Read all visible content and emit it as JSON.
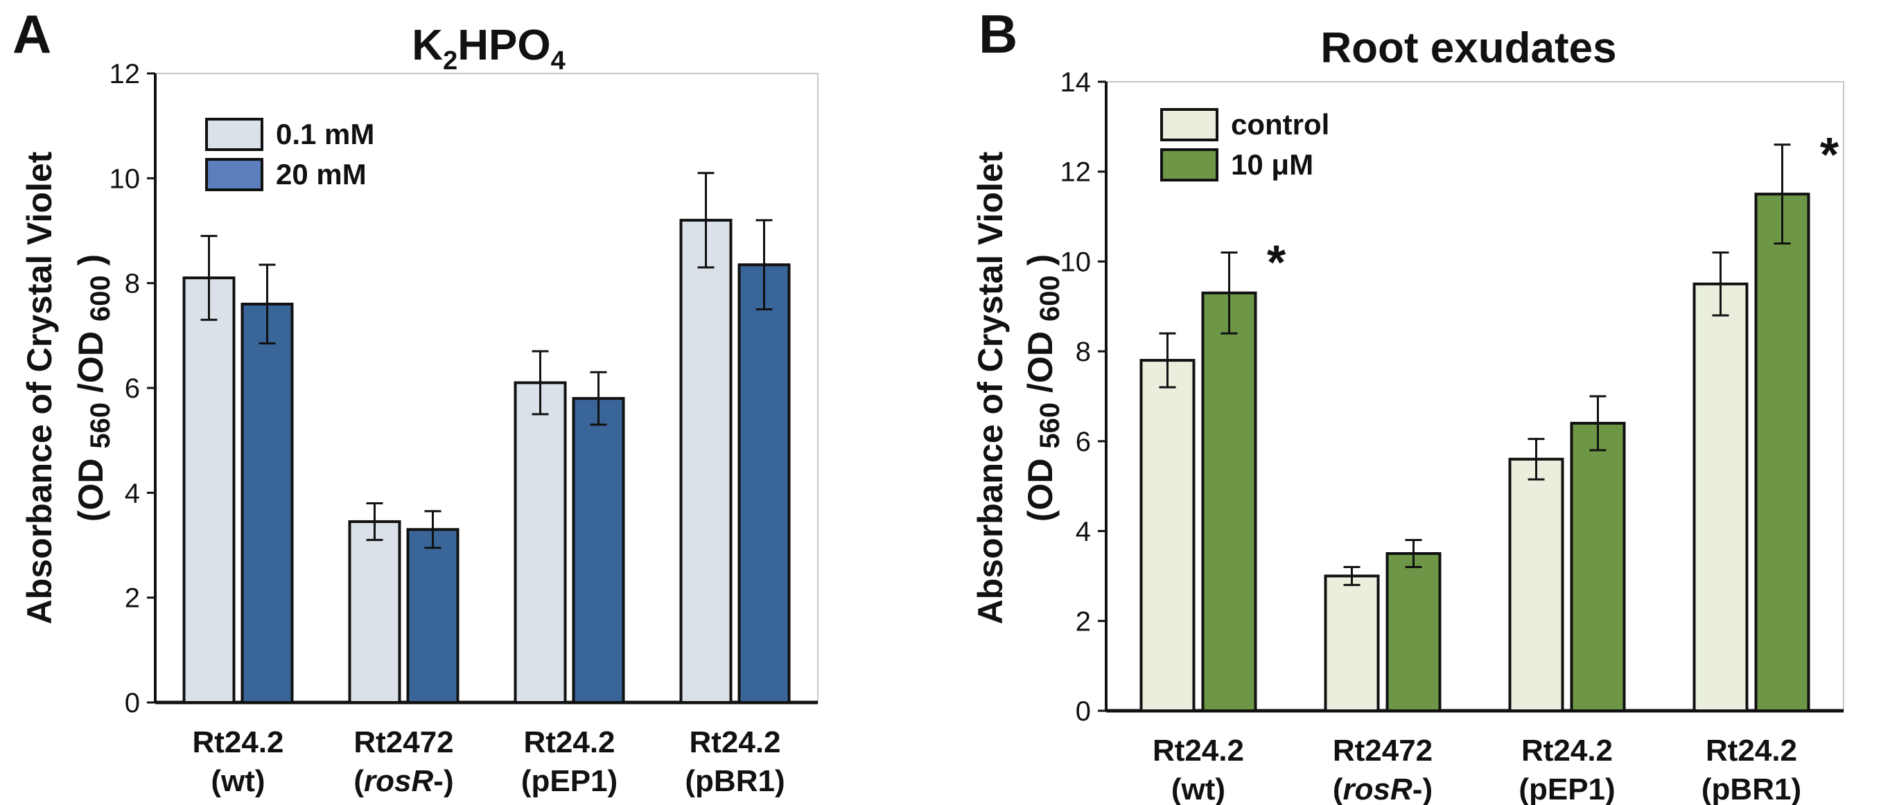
{
  "chart_data": [
    {
      "panel_label": "A",
      "type": "bar",
      "title": "K2HPO4",
      "title_parts": {
        "main": "K",
        "sub1": "2",
        "mid": "HPO",
        "sub2": "4"
      },
      "ylabel_line1": "Absorbance of Crystal Violet",
      "ylabel_line2": {
        "a": "(OD ",
        "b": "560",
        "c": " /OD ",
        "d": "600",
        "e": " )"
      },
      "xlabel": "",
      "ylim": [
        0,
        12
      ],
      "yticks": [
        0,
        2,
        4,
        6,
        8,
        10,
        12
      ],
      "categories": [
        {
          "line1": "Rt24.2",
          "line2": "(wt)",
          "italic": ""
        },
        {
          "line1": "Rt2472",
          "line2": "(rosR-)",
          "italic": "rosR"
        },
        {
          "line1": "Rt24.2",
          "line2": "(pEP1)",
          "italic": ""
        },
        {
          "line1": "Rt24.2",
          "line2": "(pBR1)",
          "italic": ""
        }
      ],
      "series": [
        {
          "name": "0.1 mM",
          "color": "#dae1e9",
          "values": [
            8.1,
            3.45,
            6.1,
            9.2
          ],
          "errors": [
            0.8,
            0.35,
            0.6,
            0.9
          ],
          "stars": [
            "",
            "",
            "",
            ""
          ]
        },
        {
          "name": "20  mM",
          "color": "#3a6599",
          "legend_color": "#5b7fbd",
          "values": [
            7.6,
            3.3,
            5.8,
            8.35
          ],
          "errors": [
            0.75,
            0.35,
            0.5,
            0.85
          ],
          "stars": [
            "",
            "",
            "",
            ""
          ]
        }
      ],
      "legend_position": "top-left",
      "grid": false
    },
    {
      "panel_label": "B",
      "type": "bar",
      "title": "Root exudates",
      "ylabel_line1": "Absorbance of Crystal Violet",
      "ylabel_line2": {
        "a": "(OD ",
        "b": "560",
        "c": " /OD ",
        "d": "600",
        "e": " )"
      },
      "xlabel": "",
      "ylim": [
        0,
        14
      ],
      "yticks": [
        0,
        2,
        4,
        6,
        8,
        10,
        12,
        14
      ],
      "categories": [
        {
          "line1": "Rt24.2",
          "line2": "(wt)",
          "italic": ""
        },
        {
          "line1": "Rt2472",
          "line2": "(rosR-)",
          "italic": "rosR"
        },
        {
          "line1": "Rt24.2",
          "line2": "(pEP1)",
          "italic": ""
        },
        {
          "line1": "Rt24.2",
          "line2": "(pBR1)",
          "italic": ""
        }
      ],
      "series": [
        {
          "name": "control",
          "color": "#e9efdc",
          "values": [
            7.8,
            3.0,
            5.6,
            9.5
          ],
          "errors": [
            0.6,
            0.2,
            0.45,
            0.7
          ],
          "stars": [
            "",
            "",
            "",
            ""
          ]
        },
        {
          "name": "10 μM",
          "color": "#6d9646",
          "values": [
            9.3,
            3.5,
            6.4,
            11.5
          ],
          "errors": [
            0.9,
            0.3,
            0.6,
            1.1
          ],
          "stars": [
            "*",
            "",
            "",
            "*"
          ]
        }
      ],
      "legend_position": "top-left",
      "grid": false
    }
  ]
}
